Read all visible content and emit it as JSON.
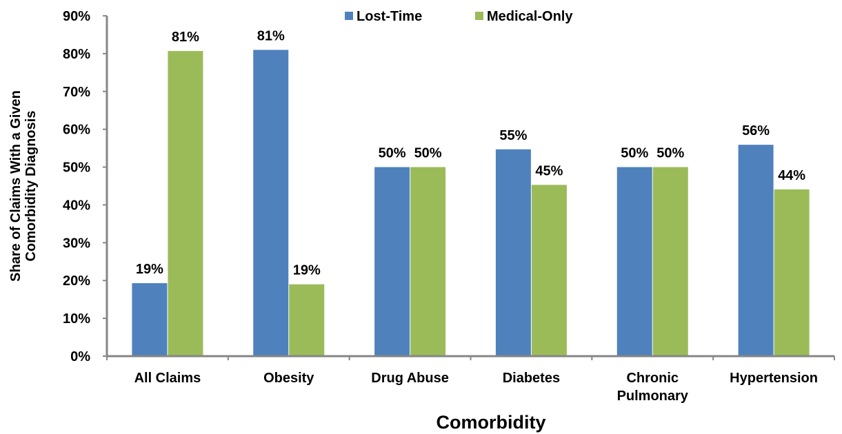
{
  "chart_data": {
    "type": "bar",
    "categories": [
      [
        "All Claims"
      ],
      [
        "Obesity"
      ],
      [
        "Drug Abuse"
      ],
      [
        "Diabetes"
      ],
      [
        "Chronic",
        "Pulmonary"
      ],
      [
        "Hypertension"
      ]
    ],
    "series": [
      {
        "name": "Lost-Time",
        "color": "#4f81bd",
        "values": [
          19.3,
          81.0,
          50.0,
          54.7,
          50.0,
          55.9
        ],
        "labels": [
          "19%",
          "81%",
          "50%",
          "55%",
          "50%",
          "56%"
        ]
      },
      {
        "name": "Medical-Only",
        "color": "#9bbb59",
        "values": [
          80.7,
          19.0,
          50.0,
          45.3,
          50.0,
          44.1
        ],
        "labels": [
          "81%",
          "19%",
          "50%",
          "45%",
          "50%",
          "44%"
        ]
      }
    ],
    "xlabel": "Comorbidity",
    "ylabel": [
      "Share of Claims With a Given",
      "Comorbidity Diagnosis"
    ],
    "ylim": [
      0,
      90
    ],
    "yticks": [
      0,
      10,
      20,
      30,
      40,
      50,
      60,
      70,
      80,
      90
    ],
    "ytick_labels": [
      "0%",
      "10%",
      "20%",
      "30%",
      "40%",
      "50%",
      "60%",
      "70%",
      "80%",
      "90%"
    ],
    "legend_position": "top",
    "grid": false
  }
}
